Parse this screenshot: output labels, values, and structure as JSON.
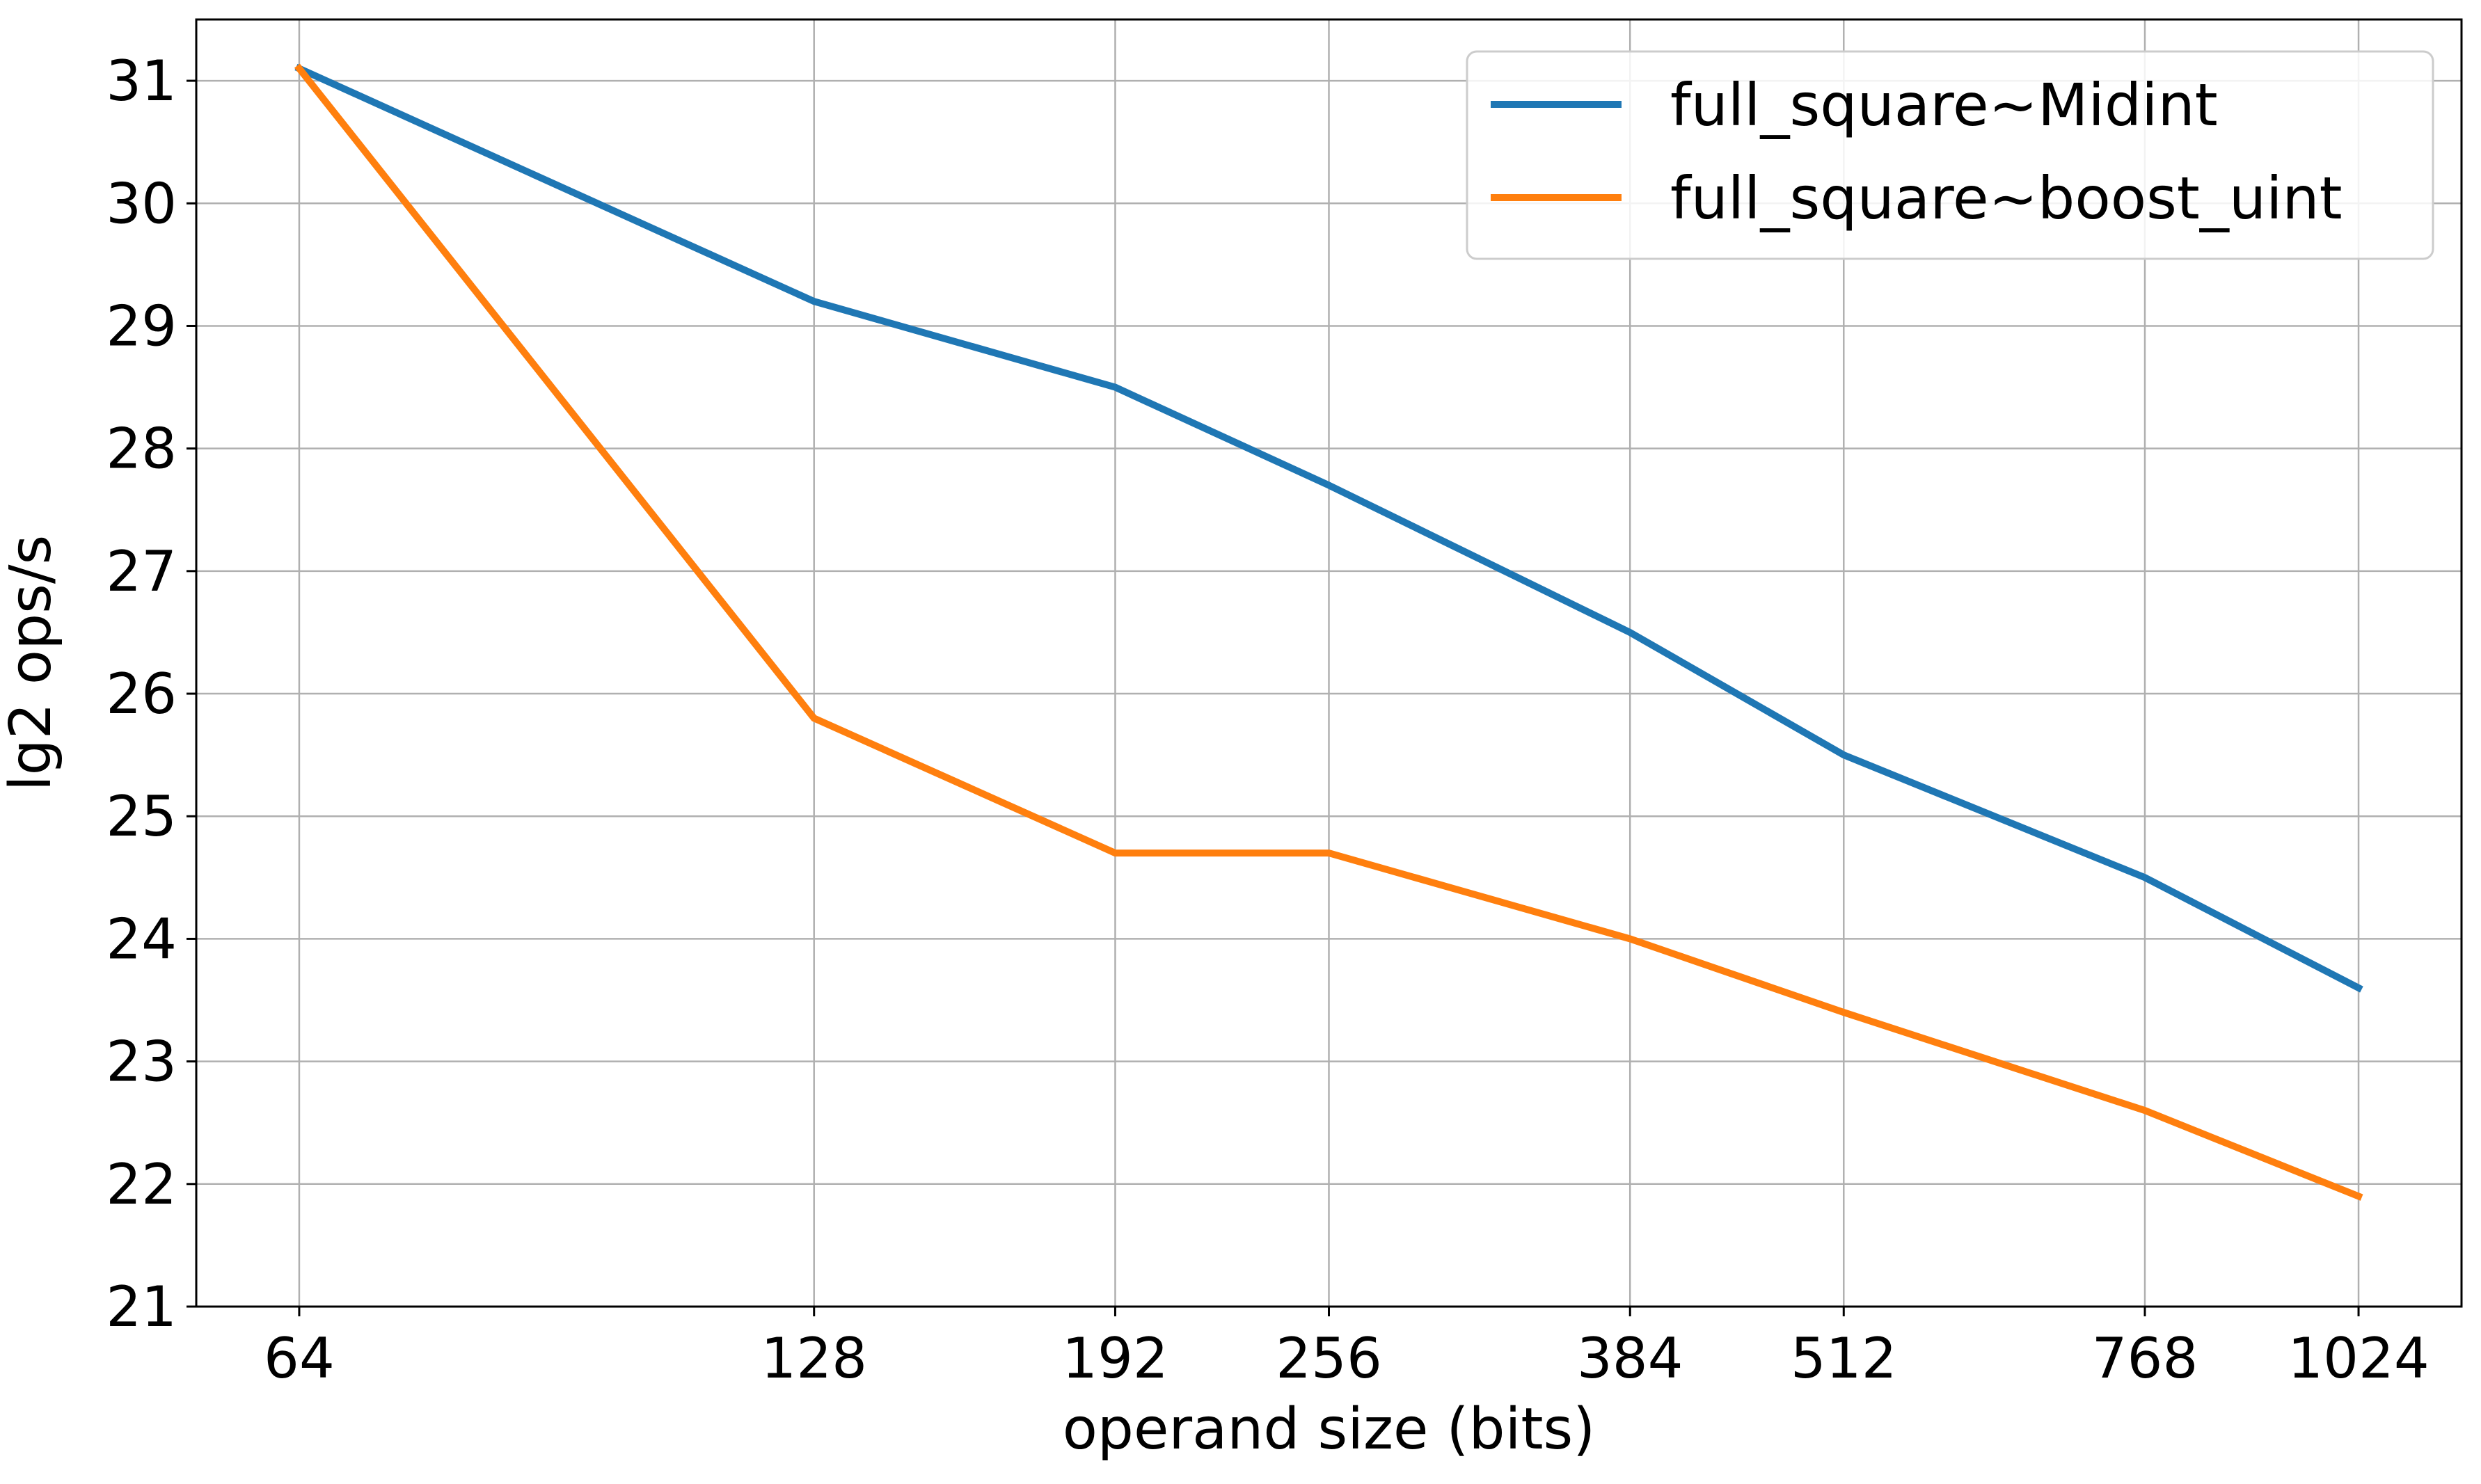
{
  "chart_data": {
    "type": "line",
    "title": "",
    "xlabel": "operand size (bits)",
    "ylabel": "lg2 ops/s",
    "x_scale": "log2",
    "x": [
      64,
      128,
      192,
      256,
      384,
      512,
      768,
      1024
    ],
    "x_ticks": [
      "64",
      "128",
      "192",
      "256",
      "384",
      "512",
      "768",
      "1024"
    ],
    "ylim": [
      21,
      31.5
    ],
    "y_ticks": [
      "21",
      "22",
      "23",
      "24",
      "25",
      "26",
      "27",
      "28",
      "29",
      "30",
      "31"
    ],
    "grid": true,
    "legend_position": "top-right",
    "series": [
      {
        "name": "full_square~Midint",
        "color": "#1f77b4",
        "values": [
          31.1,
          29.2,
          28.5,
          27.7,
          26.5,
          25.5,
          24.5,
          23.6
        ]
      },
      {
        "name": "full_square~boost_uint",
        "color": "#ff7f0e",
        "values": [
          31.1,
          25.8,
          24.7,
          24.7,
          24.0,
          23.4,
          22.6,
          21.9
        ]
      }
    ]
  }
}
